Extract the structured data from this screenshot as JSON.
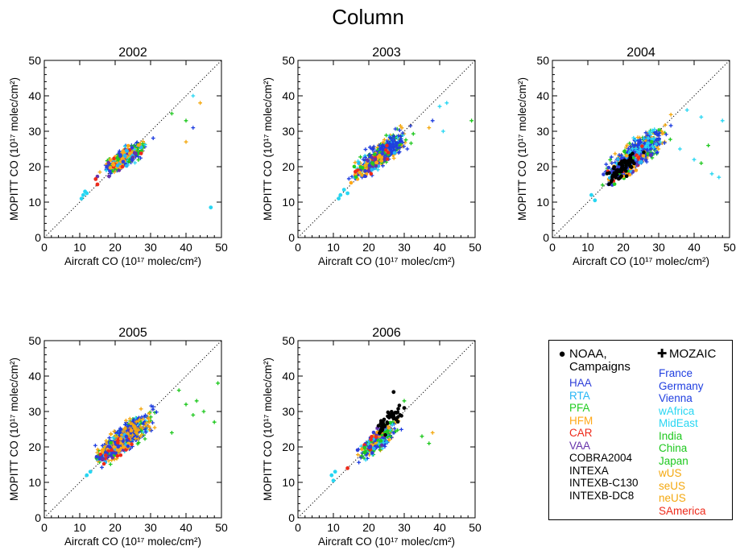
{
  "figure": {
    "title": "Column",
    "colors": {
      "HAA": "#2f3fd9",
      "RTA": "#27b6f6",
      "PFA": "#22cc22",
      "HFM": "#ffa818",
      "CAR": "#ee2a1a",
      "VAA": "#6633aa",
      "campaign_black": "#000000",
      "France": "#1f3ee0",
      "Germany": "#1f3ee0",
      "Vienna": "#1f3ee0",
      "wAfrica": "#27d6f2",
      "MidEast": "#27d6f2",
      "India": "#1ec81e",
      "China": "#1ec81e",
      "Japan": "#1ec81e",
      "wUS": "#f4a80f",
      "seUS": "#f4a80f",
      "neUS": "#f4a80f",
      "SAmerica": "#ee2a1a"
    }
  },
  "legend": {
    "left_header": "NOAA,\nCampaigns",
    "left_symbol": "filled-circle",
    "left_items": [
      "HAA",
      "RTA",
      "PFA",
      "HFM",
      "CAR",
      "VAA",
      "COBRA2004",
      "INTEXA",
      "INTEXB-C130",
      "INTEXB-DC8"
    ],
    "left_colors": [
      "#2f3fd9",
      "#27b6f6",
      "#22cc22",
      "#ffa818",
      "#ee2a1a",
      "#6633aa",
      "#000000",
      "#000000",
      "#000000",
      "#000000"
    ],
    "right_header": "MOZAIC",
    "right_symbol": "plus",
    "right_items": [
      "France",
      "Germany",
      "Vienna",
      "wAfrica",
      "MidEast",
      "India",
      "China",
      "Japan",
      "wUS",
      "seUS",
      "neUS",
      "SAmerica"
    ],
    "right_colors": [
      "#1f3ee0",
      "#1f3ee0",
      "#1f3ee0",
      "#27d6f2",
      "#27d6f2",
      "#1ec81e",
      "#1ec81e",
      "#1ec81e",
      "#f4a80f",
      "#f4a80f",
      "#f4a80f",
      "#ee2a1a"
    ]
  },
  "chart_data": [
    {
      "type": "scatter",
      "title": "2002",
      "xlabel": "Aircraft CO (10¹⁷ molec/cm²)",
      "ylabel": "MOPITT CO (10¹⁷ molec/cm²)",
      "xlim": [
        0,
        50
      ],
      "ylim": [
        0,
        50
      ],
      "xticks": [
        0,
        10,
        20,
        30,
        40,
        50
      ],
      "yticks": [
        0,
        10,
        20,
        30,
        40,
        50
      ],
      "reference_line": "1:1 dotted",
      "clusters": [
        {
          "series": "MOZAIC",
          "marker": "plus",
          "center": [
            23,
            22.5
          ],
          "spread": [
            4,
            3.2
          ],
          "count": 280
        },
        {
          "series": "NOAA/Campaigns",
          "marker": "circle",
          "center": [
            22,
            22
          ],
          "spread": [
            3.5,
            3
          ],
          "count": 90
        }
      ],
      "extra_points": [
        {
          "x": 11,
          "y": 12,
          "color": "#27d6f2",
          "marker": "circle"
        },
        {
          "x": 11.5,
          "y": 13,
          "color": "#27d6f2",
          "marker": "circle"
        },
        {
          "x": 12,
          "y": 12.5,
          "color": "#27d6f2",
          "marker": "circle"
        },
        {
          "x": 10.5,
          "y": 11,
          "color": "#27d6f2",
          "marker": "circle"
        },
        {
          "x": 15,
          "y": 15,
          "color": "#ee2a1a",
          "marker": "circle"
        },
        {
          "x": 14.5,
          "y": 16.5,
          "color": "#ee2a1a",
          "marker": "circle"
        },
        {
          "x": 36,
          "y": 35,
          "color": "#1ec81e",
          "marker": "plus"
        },
        {
          "x": 40,
          "y": 33,
          "color": "#1ec81e",
          "marker": "plus"
        },
        {
          "x": 44,
          "y": 38,
          "color": "#f4a80f",
          "marker": "plus"
        },
        {
          "x": 42,
          "y": 40,
          "color": "#27d6f2",
          "marker": "plus"
        },
        {
          "x": 42,
          "y": 31,
          "color": "#1f3ee0",
          "marker": "plus"
        },
        {
          "x": 40,
          "y": 27,
          "color": "#f4a80f",
          "marker": "plus"
        },
        {
          "x": 47,
          "y": 8.5,
          "color": "#27d6f2",
          "marker": "circle"
        }
      ]
    },
    {
      "type": "scatter",
      "title": "2003",
      "xlabel": "Aircraft CO (10¹⁷ molec/cm²)",
      "ylabel": "MOPITT CO (10¹⁷ molec/cm²)",
      "xlim": [
        0,
        50
      ],
      "ylim": [
        0,
        50
      ],
      "xticks": [
        0,
        10,
        20,
        30,
        40,
        50
      ],
      "yticks": [
        0,
        10,
        20,
        30,
        40,
        50
      ],
      "reference_line": "1:1 dotted",
      "clusters": [
        {
          "series": "MOZAIC",
          "marker": "plus",
          "center": [
            24,
            24
          ],
          "spread": [
            4.5,
            4
          ],
          "count": 480
        },
        {
          "series": "NOAA/Campaigns",
          "marker": "circle",
          "center": [
            21,
            21
          ],
          "spread": [
            3.5,
            3
          ],
          "count": 120
        }
      ],
      "extra_points": [
        {
          "x": 12,
          "y": 12,
          "color": "#27d6f2",
          "marker": "circle"
        },
        {
          "x": 13,
          "y": 13.5,
          "color": "#27d6f2",
          "marker": "circle"
        },
        {
          "x": 11.5,
          "y": 11,
          "color": "#27d6f2",
          "marker": "circle"
        },
        {
          "x": 14,
          "y": 12.5,
          "color": "#27d6f2",
          "marker": "circle"
        },
        {
          "x": 40,
          "y": 37,
          "color": "#27d6f2",
          "marker": "plus"
        },
        {
          "x": 42,
          "y": 38,
          "color": "#27d6f2",
          "marker": "plus"
        },
        {
          "x": 38,
          "y": 33,
          "color": "#1f3ee0",
          "marker": "plus"
        },
        {
          "x": 37,
          "y": 31,
          "color": "#f4a80f",
          "marker": "plus"
        },
        {
          "x": 49,
          "y": 33,
          "color": "#1ec81e",
          "marker": "plus"
        },
        {
          "x": 41,
          "y": 30,
          "color": "#27d6f2",
          "marker": "plus"
        }
      ]
    },
    {
      "type": "scatter",
      "title": "2004",
      "xlabel": "Aircraft CO (10¹⁷ molec/cm²)",
      "ylabel": "MOPITT CO (10¹⁷ molec/cm²)",
      "xlim": [
        0,
        50
      ],
      "ylim": [
        0,
        50
      ],
      "xticks": [
        0,
        10,
        20,
        30,
        40,
        50
      ],
      "yticks": [
        0,
        10,
        20,
        30,
        40,
        50
      ],
      "reference_line": "1:1 dotted",
      "clusters": [
        {
          "series": "MOZAIC",
          "marker": "plus",
          "center": [
            24,
            24
          ],
          "spread": [
            5,
            4.5
          ],
          "count": 600
        },
        {
          "series": "NOAA/Campaigns",
          "marker": "circle",
          "center": [
            21,
            20.5
          ],
          "spread": [
            4,
            3.5
          ],
          "count": 170
        },
        {
          "series": "COBRA2004/INTEXA",
          "marker": "circle",
          "center": [
            20,
            20
          ],
          "spread": [
            3,
            3
          ],
          "count": 70,
          "color": "#000000"
        }
      ],
      "extra_points": [
        {
          "x": 12,
          "y": 10.5,
          "color": "#27d6f2",
          "marker": "circle"
        },
        {
          "x": 11,
          "y": 12,
          "color": "#27d6f2",
          "marker": "circle"
        },
        {
          "x": 38,
          "y": 36,
          "color": "#27d6f2",
          "marker": "plus"
        },
        {
          "x": 42,
          "y": 34,
          "color": "#27d6f2",
          "marker": "plus"
        },
        {
          "x": 44,
          "y": 26,
          "color": "#1ec81e",
          "marker": "plus"
        },
        {
          "x": 42,
          "y": 21,
          "color": "#1ec81e",
          "marker": "plus"
        },
        {
          "x": 45,
          "y": 18,
          "color": "#27d6f2",
          "marker": "plus"
        },
        {
          "x": 47,
          "y": 17,
          "color": "#27d6f2",
          "marker": "plus"
        },
        {
          "x": 40,
          "y": 22,
          "color": "#27d6f2",
          "marker": "plus"
        },
        {
          "x": 48,
          "y": 33,
          "color": "#27d6f2",
          "marker": "plus"
        },
        {
          "x": 36,
          "y": 25,
          "color": "#27d6f2",
          "marker": "plus"
        }
      ]
    },
    {
      "type": "scatter",
      "title": "2005",
      "xlabel": "Aircraft CO (10¹⁷ molec/cm²)",
      "ylabel": "MOPITT CO (10¹⁷ molec/cm²)",
      "xlim": [
        0,
        50
      ],
      "ylim": [
        0,
        50
      ],
      "xticks": [
        0,
        10,
        20,
        30,
        40,
        50
      ],
      "yticks": [
        0,
        10,
        20,
        30,
        40,
        50
      ],
      "reference_line": "1:1 dotted",
      "clusters": [
        {
          "series": "MOZAIC",
          "marker": "plus",
          "center": [
            23,
            23
          ],
          "spread": [
            5,
            4.5
          ],
          "count": 520
        },
        {
          "series": "NOAA/Campaigns",
          "marker": "circle",
          "center": [
            20,
            19.5
          ],
          "spread": [
            3.5,
            3
          ],
          "count": 130
        }
      ],
      "extra_points": [
        {
          "x": 12,
          "y": 12,
          "color": "#27d6f2",
          "marker": "circle"
        },
        {
          "x": 13,
          "y": 13,
          "color": "#27d6f2",
          "marker": "circle"
        },
        {
          "x": 40,
          "y": 32,
          "color": "#1ec81e",
          "marker": "plus"
        },
        {
          "x": 43,
          "y": 33,
          "color": "#1ec81e",
          "marker": "plus"
        },
        {
          "x": 42,
          "y": 29,
          "color": "#1ec81e",
          "marker": "plus"
        },
        {
          "x": 45,
          "y": 30,
          "color": "#1ec81e",
          "marker": "plus"
        },
        {
          "x": 48,
          "y": 27,
          "color": "#1ec81e",
          "marker": "plus"
        },
        {
          "x": 49,
          "y": 38,
          "color": "#1ec81e",
          "marker": "plus"
        },
        {
          "x": 38,
          "y": 36,
          "color": "#1ec81e",
          "marker": "plus"
        },
        {
          "x": 36,
          "y": 24,
          "color": "#1ec81e",
          "marker": "plus"
        }
      ]
    },
    {
      "type": "scatter",
      "title": "2006",
      "xlabel": "Aircraft CO (10¹⁷ molec/cm²)",
      "ylabel": "MOPITT CO (10¹⁷ molec/cm²)",
      "xlim": [
        0,
        50
      ],
      "ylim": [
        0,
        50
      ],
      "xticks": [
        0,
        10,
        20,
        30,
        40,
        50
      ],
      "yticks": [
        0,
        10,
        20,
        30,
        40,
        50
      ],
      "reference_line": "1:1 dotted",
      "clusters": [
        {
          "series": "MOZAIC",
          "marker": "plus",
          "center": [
            23,
            22
          ],
          "spread": [
            3.5,
            3.5
          ],
          "count": 260
        },
        {
          "series": "NOAA/Campaigns",
          "marker": "circle",
          "center": [
            22,
            22
          ],
          "spread": [
            3,
            3
          ],
          "count": 70
        },
        {
          "series": "INTEXB",
          "marker": "circle",
          "center": [
            26,
            28
          ],
          "spread": [
            2.5,
            3
          ],
          "count": 45,
          "color": "#000000"
        }
      ],
      "extra_points": [
        {
          "x": 10,
          "y": 10.5,
          "color": "#27d6f2",
          "marker": "circle"
        },
        {
          "x": 9.5,
          "y": 12,
          "color": "#27d6f2",
          "marker": "circle"
        },
        {
          "x": 10.5,
          "y": 13,
          "color": "#27d6f2",
          "marker": "circle"
        },
        {
          "x": 14,
          "y": 14,
          "color": "#ee2a1a",
          "marker": "circle"
        },
        {
          "x": 27,
          "y": 35.5,
          "color": "#000000",
          "marker": "circle"
        },
        {
          "x": 30,
          "y": 31,
          "color": "#000000",
          "marker": "circle"
        },
        {
          "x": 35,
          "y": 23,
          "color": "#1ec81e",
          "marker": "plus"
        },
        {
          "x": 37,
          "y": 21,
          "color": "#1ec81e",
          "marker": "plus"
        },
        {
          "x": 38,
          "y": 24,
          "color": "#f4a80f",
          "marker": "plus"
        },
        {
          "x": 30,
          "y": 33,
          "color": "#1ec81e",
          "marker": "plus"
        }
      ]
    }
  ]
}
